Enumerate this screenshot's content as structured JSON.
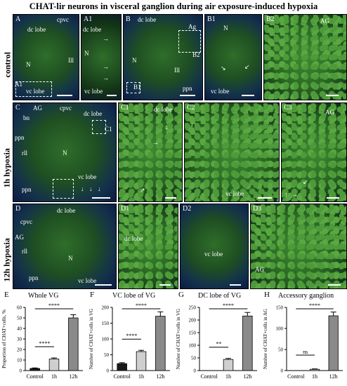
{
  "title": "CHAT-lir neurons in visceral ganglion during air exposure-induced hypoxia",
  "row_labels": [
    "control",
    "1h hypoxia",
    "12h hypoxia"
  ],
  "panels": {
    "A": {
      "label": "A",
      "tags": [
        "dc lobe",
        "cpvc",
        "N",
        "Ill",
        "vc lobe",
        "A1"
      ]
    },
    "A1": {
      "label": "A1",
      "tags": [
        "dc lobe",
        "N",
        "vc lobe"
      ]
    },
    "B": {
      "label": "B",
      "tags": [
        "dc lobe",
        "Ag",
        "N",
        "B2",
        "Ill",
        "B1",
        "ppn"
      ]
    },
    "B1": {
      "label": "B1",
      "tags": [
        "N",
        "vc lobe"
      ]
    },
    "B2": {
      "label": "B2",
      "tags": [
        "AG"
      ]
    },
    "C": {
      "label": "C",
      "tags": [
        "AG",
        "cpvc",
        "bn",
        "dc lobe",
        "C1",
        "ppn",
        "rll",
        "N",
        "vc lobe",
        "ppn"
      ]
    },
    "C1": {
      "label": "C1",
      "tags": [
        "dc lobe"
      ]
    },
    "C2": {
      "label": "C2",
      "tags": [
        "vc lobe"
      ]
    },
    "C3": {
      "label": "C3",
      "tags": [
        "AG"
      ]
    },
    "D": {
      "label": "D",
      "tags": [
        "cpvc",
        "dc lobe",
        "AG",
        "rll",
        "N",
        "ppn",
        "vc lobe"
      ]
    },
    "D1": {
      "label": "D1",
      "tags": [
        "dc lobe"
      ]
    },
    "D2": {
      "label": "D2",
      "tags": [
        "vc lobe"
      ]
    },
    "D3": {
      "label": "D3",
      "tags": [
        "AG"
      ]
    }
  },
  "chart_data": [
    {
      "panel": "E",
      "type": "bar",
      "title": "Whole VG",
      "categories": [
        "Control",
        "1h",
        "12h"
      ],
      "values": [
        2,
        11,
        50
      ],
      "errors": [
        0.5,
        1,
        3
      ],
      "ylabel": "Proportion of CHAT+cells, %",
      "ylim": [
        0,
        60
      ],
      "yticks": [
        0,
        10,
        20,
        30,
        40,
        50,
        60
      ],
      "bar_colors": [
        "#1a1a1a",
        "#cfcfcf",
        "#8a8a8a"
      ],
      "significance": [
        {
          "from": 0,
          "to": 1,
          "label": "****"
        },
        {
          "from": 0,
          "to": 2,
          "label": "****"
        }
      ]
    },
    {
      "panel": "F",
      "type": "bar",
      "title": "VC lobe of VG",
      "categories": [
        "Control",
        "1h",
        "12h"
      ],
      "values": [
        22,
        60,
        172
      ],
      "errors": [
        3,
        4,
        14
      ],
      "ylabel": "Number of CHAT+cells in VG",
      "ylim": [
        0,
        200
      ],
      "yticks": [
        0,
        50,
        100,
        150,
        200
      ],
      "bar_colors": [
        "#1a1a1a",
        "#cfcfcf",
        "#8a8a8a"
      ],
      "significance": [
        {
          "from": 0,
          "to": 1,
          "label": "****"
        },
        {
          "from": 0,
          "to": 2,
          "label": "****"
        }
      ]
    },
    {
      "panel": "G",
      "type": "bar",
      "title": "DC lobe of VG",
      "categories": [
        "Control",
        "1h",
        "12h"
      ],
      "values": [
        0,
        44,
        216
      ],
      "errors": [
        0,
        4,
        14
      ],
      "ylabel": "Number of CHAT+cells in VG",
      "ylim": [
        0,
        250
      ],
      "yticks": [
        0,
        50,
        100,
        150,
        200,
        250
      ],
      "bar_colors": [
        "#1a1a1a",
        "#cfcfcf",
        "#8a8a8a"
      ],
      "significance": [
        {
          "from": 0,
          "to": 1,
          "label": "**"
        },
        {
          "from": 0,
          "to": 2,
          "label": "****"
        }
      ]
    },
    {
      "panel": "H",
      "type": "bar",
      "title": "Accessory ganglion",
      "categories": [
        "Control",
        "1h",
        "12h"
      ],
      "values": [
        0,
        3,
        130
      ],
      "errors": [
        0,
        1,
        9
      ],
      "ylabel": "Number of CHAT+cells in AG",
      "ylim": [
        0,
        150
      ],
      "yticks": [
        0,
        50,
        100,
        150
      ],
      "bar_colors": [
        "#1a1a1a",
        "#cfcfcf",
        "#8a8a8a"
      ],
      "significance": [
        {
          "from": 0,
          "to": 1,
          "label": "ns"
        },
        {
          "from": 0,
          "to": 2,
          "label": "****"
        }
      ]
    }
  ]
}
